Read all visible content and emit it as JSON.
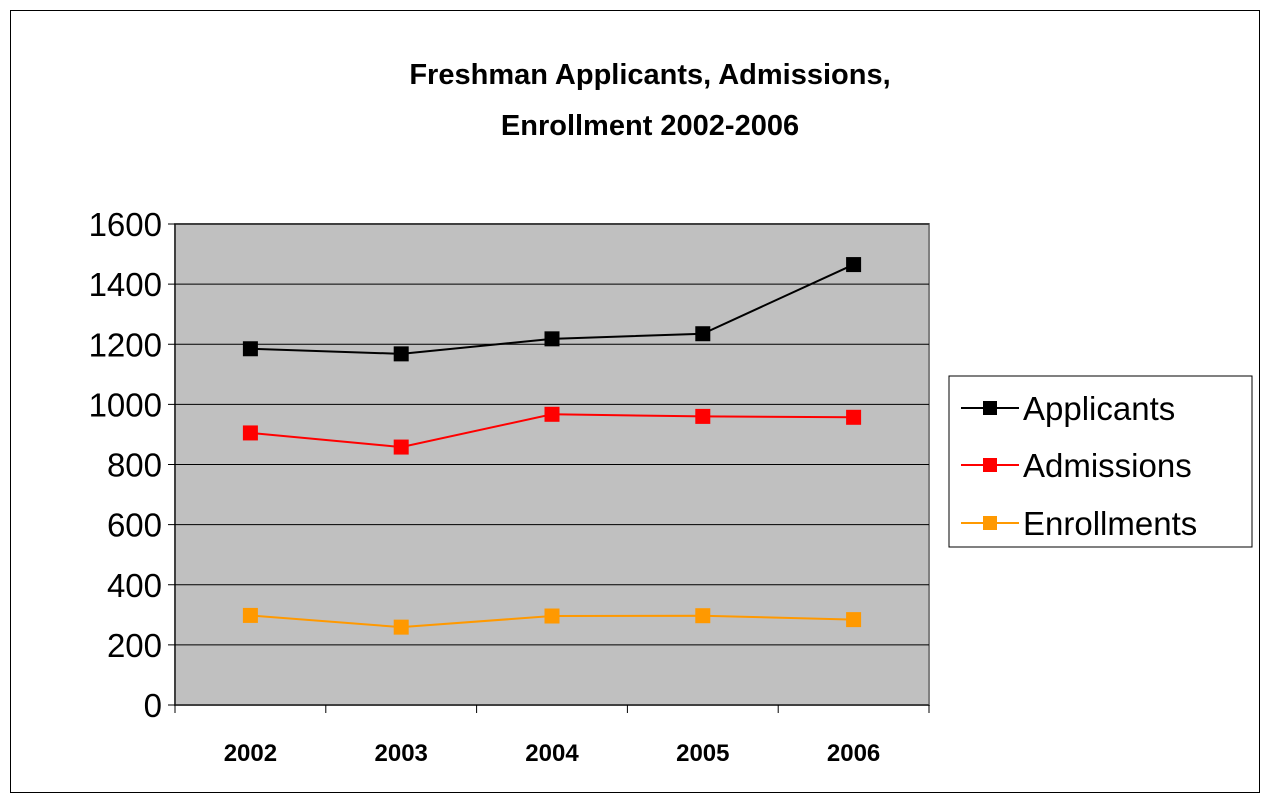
{
  "chart_data": {
    "type": "line",
    "title_lines": [
      "Freshman Applicants, Admissions,",
      "Enrollment 2002-2006"
    ],
    "categories": [
      "2002",
      "2003",
      "2004",
      "2005",
      "2006"
    ],
    "ylim": [
      0,
      1600
    ],
    "yticks": [
      0,
      200,
      400,
      600,
      800,
      1000,
      1200,
      1400,
      1600
    ],
    "grid": true,
    "plot_background": "#c0c0c0",
    "legend_position": "right",
    "series": [
      {
        "name": "Applicants",
        "color": "#000000",
        "marker": "square",
        "values": [
          1185,
          1168,
          1218,
          1235,
          1465
        ]
      },
      {
        "name": "Admissions",
        "color": "#ff0000",
        "marker": "square",
        "values": [
          905,
          858,
          967,
          960,
          957
        ]
      },
      {
        "name": "Enrollments",
        "color": "#ff9900",
        "marker": "square",
        "values": [
          298,
          259,
          296,
          297,
          284
        ]
      }
    ]
  }
}
